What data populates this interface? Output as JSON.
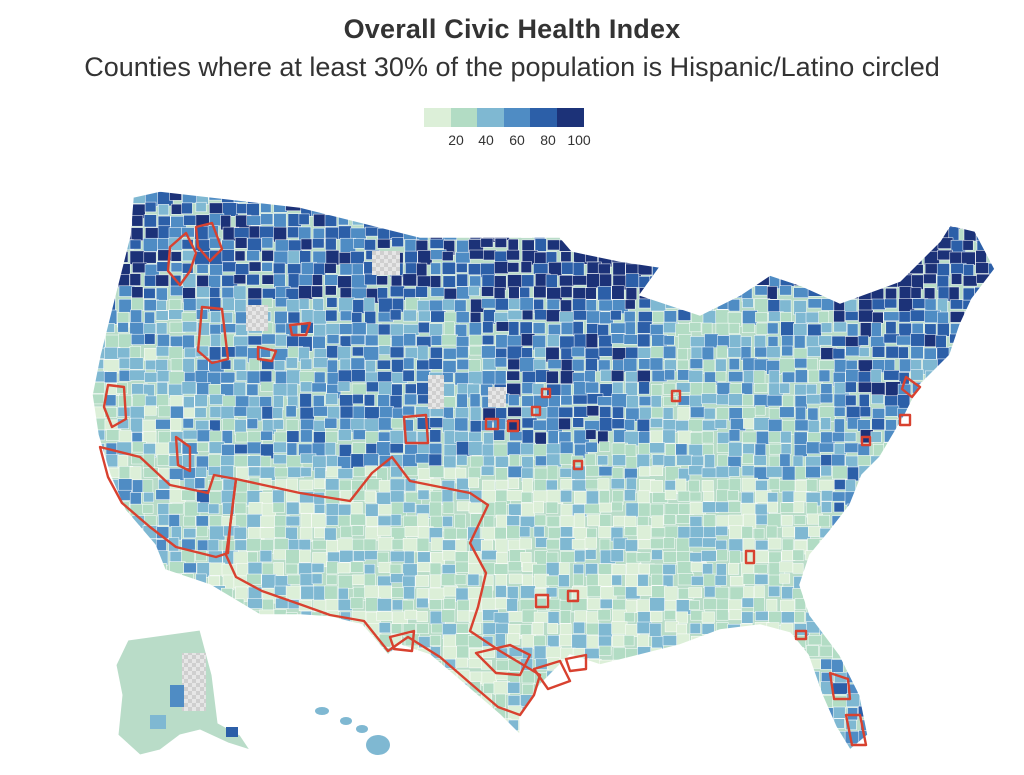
{
  "header": {
    "title": "Overall Civic Health Index",
    "subtitle": "Counties where at least 30% of the population is Hispanic/Latino circled"
  },
  "legend": {
    "colors": [
      "#dcefd8",
      "#b2dcc4",
      "#7fb8d2",
      "#4f8cc4",
      "#2c5fa8",
      "#1c3278"
    ],
    "ticks": [
      "20",
      "40",
      "60",
      "80",
      "100"
    ]
  },
  "map": {
    "highlight_color": "#d8412f",
    "missing_color": "#dddddd"
  }
}
